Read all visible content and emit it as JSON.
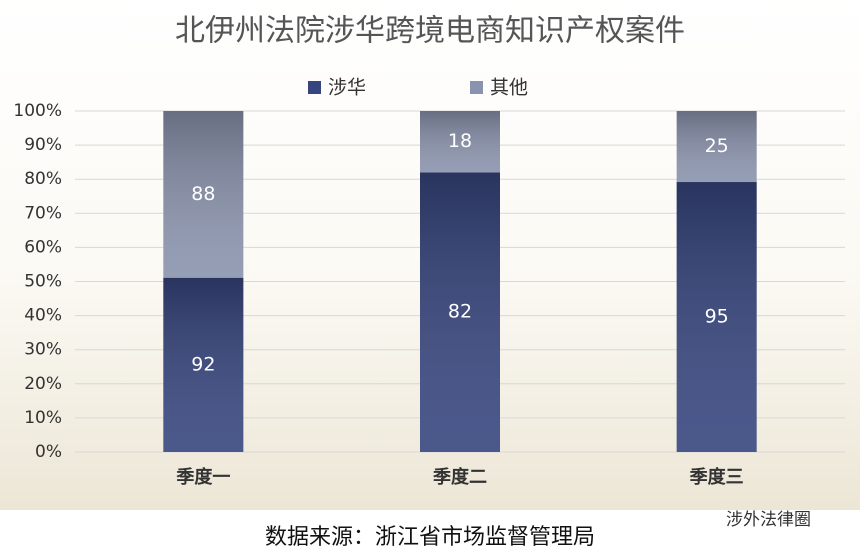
{
  "chart_data": {
    "type": "bar",
    "stacked": true,
    "normalize": true,
    "title": "北伊州法院涉华跨境电商知识产权案件",
    "categories": [
      "季度一",
      "季度二",
      "季度三"
    ],
    "series": [
      {
        "name": "涉华",
        "color": "#36457e",
        "values": [
          92,
          82,
          95
        ]
      },
      {
        "name": "其他",
        "color": "#8a93ad",
        "values": [
          88,
          18,
          25
        ]
      }
    ],
    "ylim": [
      0,
      100
    ],
    "yticks": [
      {
        "value": 0,
        "label": "0%"
      },
      {
        "value": 10,
        "label": "10%"
      },
      {
        "value": 20,
        "label": "20%"
      },
      {
        "value": 30,
        "label": "30%"
      },
      {
        "value": 40,
        "label": "40%"
      },
      {
        "value": 50,
        "label": "50%"
      },
      {
        "value": 60,
        "label": "60%"
      },
      {
        "value": 70,
        "label": "70%"
      },
      {
        "value": 80,
        "label": "80%"
      },
      {
        "value": 90,
        "label": "90%"
      },
      {
        "value": 100,
        "label": "100%"
      }
    ],
    "grid": true,
    "legend": "top",
    "source": "数据来源：浙江省市场监督管理局",
    "watermark": "涉外法律圈"
  }
}
